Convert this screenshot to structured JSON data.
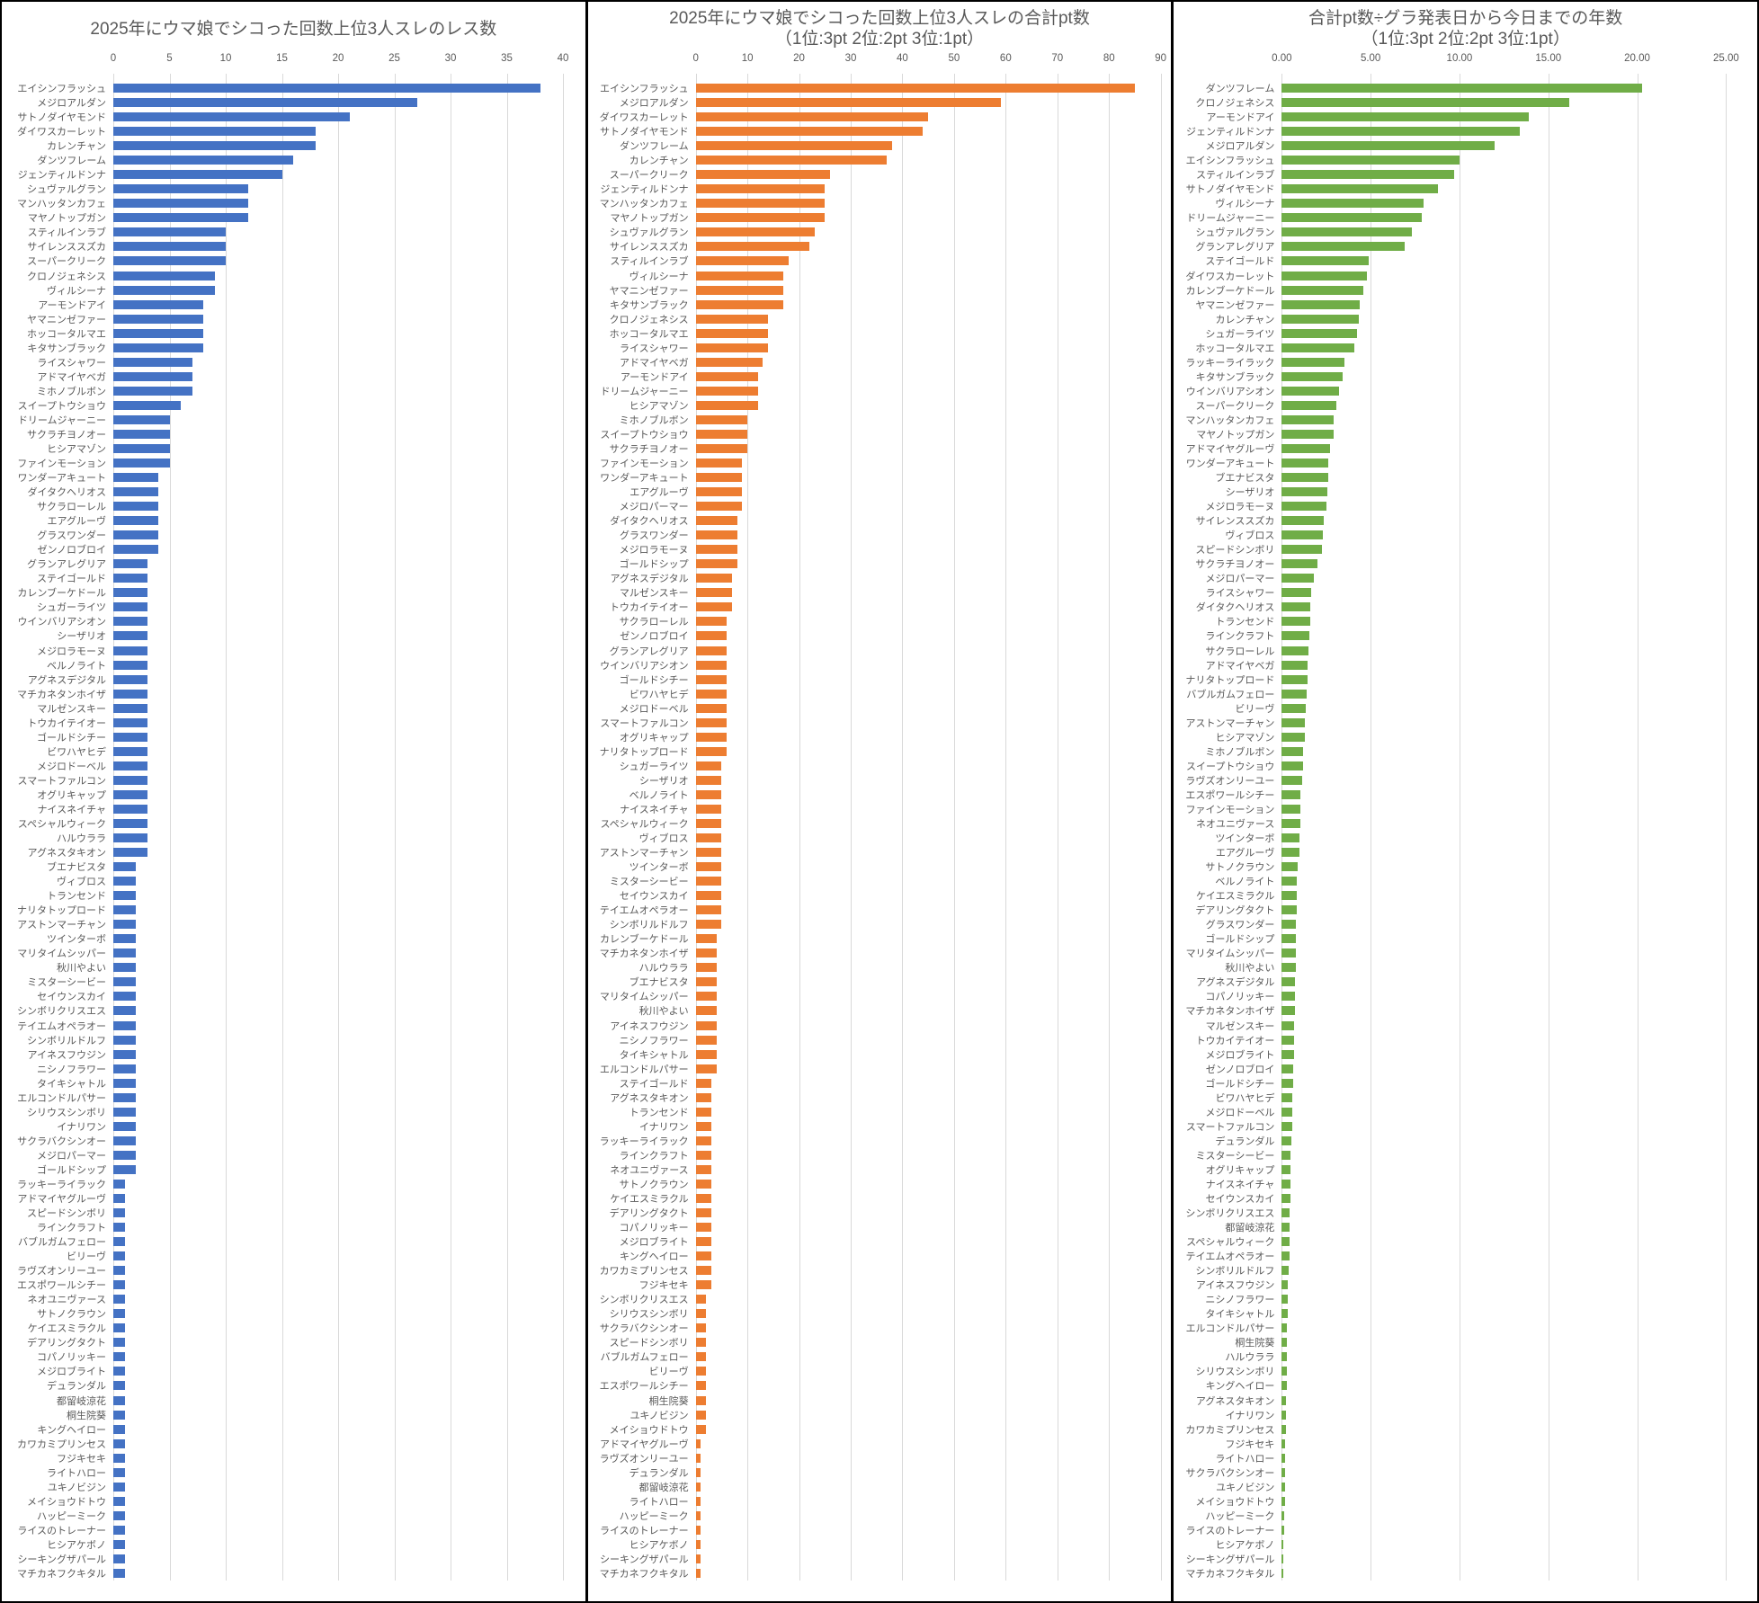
{
  "chart_data": [
    {
      "type": "bar",
      "orientation": "horizontal",
      "title": "2025年にウマ娘でシコった回数上位3人スレのレス数",
      "subtitle": "",
      "color": "#4472c4",
      "xlim": [
        0,
        40
      ],
      "tick_values": [
        0,
        5,
        10,
        15,
        20,
        25,
        30,
        35,
        40
      ],
      "tick_labels": [
        "0",
        "5",
        "10",
        "15",
        "20",
        "25",
        "30",
        "35",
        "40"
      ],
      "grid": true,
      "legend": "none",
      "categories": [
        "エイシンフラッシュ",
        "メジロアルダン",
        "サトノダイヤモンド",
        "ダイワスカーレット",
        "カレンチャン",
        "ダンツフレーム",
        "ジェンティルドンナ",
        "シュヴァルグラン",
        "マンハッタンカフェ",
        "マヤノトップガン",
        "スティルインラブ",
        "サイレンススズカ",
        "スーパークリーク",
        "クロノジェネシス",
        "ヴィルシーナ",
        "アーモンドアイ",
        "ヤマニンゼファー",
        "ホッコータルマエ",
        "キタサンブラック",
        "ライスシャワー",
        "アドマイヤベガ",
        "ミホノブルボン",
        "スイープトウショウ",
        "ドリームジャーニー",
        "サクラチヨノオー",
        "ヒシアマゾン",
        "ファインモーション",
        "ワンダーアキュート",
        "ダイタクヘリオス",
        "サクラローレル",
        "エアグルーヴ",
        "グラスワンダー",
        "ゼンノロブロイ",
        "グランアレグリア",
        "ステイゴールド",
        "カレンブーケドール",
        "シュガーライツ",
        "ウインバリアシオン",
        "シーザリオ",
        "メジロラモーヌ",
        "ベルノライト",
        "アグネスデジタル",
        "マチカネタンホイザ",
        "マルゼンスキー",
        "トウカイテイオー",
        "ゴールドシチー",
        "ビワハヤヒデ",
        "メジロドーベル",
        "スマートファルコン",
        "オグリキャップ",
        "ナイスネイチャ",
        "スペシャルウィーク",
        "ハルウララ",
        "アグネスタキオン",
        "ブエナビスタ",
        "ヴィブロス",
        "トランセンド",
        "ナリタトップロード",
        "アストンマーチャン",
        "ツインターボ",
        "マリタイムシッパー",
        "秋川やよい",
        "ミスターシービー",
        "セイウンスカイ",
        "シンボリクリスエス",
        "テイエムオペラオー",
        "シンボリルドルフ",
        "アイネスフウジン",
        "ニシノフラワー",
        "タイキシャトル",
        "エルコンドルパサー",
        "シリウスシンボリ",
        "イナリワン",
        "サクラバクシンオー",
        "メジロパーマー",
        "ゴールドシップ",
        "ラッキーライラック",
        "アドマイヤグルーヴ",
        "スピードシンボリ",
        "ラインクラフト",
        "バブルガムフェロー",
        "ビリーヴ",
        "ラヴズオンリーユー",
        "エスポワールシチー",
        "ネオユニヴァース",
        "サトノクラウン",
        "ケイエスミラクル",
        "デアリングタクト",
        "コパノリッキー",
        "メジロブライト",
        "デュランダル",
        "都留岐涼花",
        "桐生院葵",
        "キングヘイロー",
        "カワカミプリンセス",
        "フジキセキ",
        "ライトハロー",
        "ユキノビジン",
        "メイショウドトウ",
        "ハッピーミーク",
        "ライスのトレーナー",
        "ヒシアケボノ",
        "シーキングザパール",
        "マチカネフクキタル"
      ],
      "values": [
        38,
        27,
        21,
        18,
        18,
        16,
        15,
        12,
        12,
        12,
        10,
        10,
        10,
        9,
        9,
        8,
        8,
        8,
        8,
        7,
        7,
        7,
        6,
        5,
        5,
        5,
        5,
        4,
        4,
        4,
        4,
        4,
        4,
        3,
        3,
        3,
        3,
        3,
        3,
        3,
        3,
        3,
        3,
        3,
        3,
        3,
        3,
        3,
        3,
        3,
        3,
        3,
        3,
        3,
        2,
        2,
        2,
        2,
        2,
        2,
        2,
        2,
        2,
        2,
        2,
        2,
        2,
        2,
        2,
        2,
        2,
        2,
        2,
        2,
        2,
        2,
        1,
        1,
        1,
        1,
        1,
        1,
        1,
        1,
        1,
        1,
        1,
        1,
        1,
        1,
        1,
        1,
        1,
        1,
        1,
        1,
        1,
        1,
        1,
        1,
        1,
        1,
        1,
        1
      ]
    },
    {
      "type": "bar",
      "orientation": "horizontal",
      "title": "2025年にウマ娘でシコった回数上位3人スレの合計pt数",
      "subtitle": "（1位:3pt 2位:2pt 3位:1pt）",
      "color": "#ed7d31",
      "xlim": [
        0,
        90
      ],
      "tick_values": [
        0,
        10,
        20,
        30,
        40,
        50,
        60,
        70,
        80,
        90
      ],
      "tick_labels": [
        "0",
        "10",
        "20",
        "30",
        "40",
        "50",
        "60",
        "70",
        "80",
        "90"
      ],
      "grid": true,
      "legend": "none",
      "categories": [
        "エイシンフラッシュ",
        "メジロアルダン",
        "ダイワスカーレット",
        "サトノダイヤモンド",
        "ダンツフレーム",
        "カレンチャン",
        "スーパークリーク",
        "ジェンティルドンナ",
        "マンハッタンカフェ",
        "マヤノトップガン",
        "シュヴァルグラン",
        "サイレンススズカ",
        "スティルインラブ",
        "ヴィルシーナ",
        "ヤマニンゼファー",
        "キタサンブラック",
        "クロノジェネシス",
        "ホッコータルマエ",
        "ライスシャワー",
        "アドマイヤベガ",
        "アーモンドアイ",
        "ドリームジャーニー",
        "ヒシアマゾン",
        "ミホノブルボン",
        "スイープトウショウ",
        "サクラチヨノオー",
        "ファインモーション",
        "ワンダーアキュート",
        "エアグルーヴ",
        "メジロパーマー",
        "ダイタクヘリオス",
        "グラスワンダー",
        "メジロラモーヌ",
        "ゴールドシップ",
        "アグネスデジタル",
        "マルゼンスキー",
        "トウカイテイオー",
        "サクラローレル",
        "ゼンノロブロイ",
        "グランアレグリア",
        "ウインバリアシオン",
        "ゴールドシチー",
        "ビワハヤヒデ",
        "メジロドーベル",
        "スマートファルコン",
        "オグリキャップ",
        "ナリタトップロード",
        "シュガーライツ",
        "シーザリオ",
        "ベルノライト",
        "ナイスネイチャ",
        "スペシャルウィーク",
        "ヴィブロス",
        "アストンマーチャン",
        "ツインターボ",
        "ミスターシービー",
        "セイウンスカイ",
        "テイエムオペラオー",
        "シンボリルドルフ",
        "カレンブーケドール",
        "マチカネタンホイザ",
        "ハルウララ",
        "ブエナビスタ",
        "マリタイムシッパー",
        "秋川やよい",
        "アイネスフウジン",
        "ニシノフラワー",
        "タイキシャトル",
        "エルコンドルパサー",
        "ステイゴールド",
        "アグネスタキオン",
        "トランセンド",
        "イナリワン",
        "ラッキーライラック",
        "ラインクラフト",
        "ネオユニヴァース",
        "サトノクラウン",
        "ケイエスミラクル",
        "デアリングタクト",
        "コパノリッキー",
        "メジロブライト",
        "キングヘイロー",
        "カワカミプリンセス",
        "フジキセキ",
        "シンボリクリスエス",
        "シリウスシンボリ",
        "サクラバクシンオー",
        "スピードシンボリ",
        "バブルガムフェロー",
        "ビリーヴ",
        "エスポワールシチー",
        "桐生院葵",
        "ユキノビジン",
        "メイショウドトウ",
        "アドマイヤグルーヴ",
        "ラヴズオンリーユー",
        "デュランダル",
        "都留岐涼花",
        "ライトハロー",
        "ハッピーミーク",
        "ライスのトレーナー",
        "ヒシアケボノ",
        "シーキングザパール",
        "マチカネフクキタル"
      ],
      "values": [
        85,
        59,
        45,
        44,
        38,
        37,
        26,
        25,
        25,
        25,
        23,
        22,
        18,
        17,
        17,
        17,
        14,
        14,
        14,
        13,
        12,
        12,
        12,
        10,
        10,
        10,
        9,
        9,
        9,
        9,
        8,
        8,
        8,
        8,
        7,
        7,
        7,
        6,
        6,
        6,
        6,
        6,
        6,
        6,
        6,
        6,
        6,
        5,
        5,
        5,
        5,
        5,
        5,
        5,
        5,
        5,
        5,
        5,
        5,
        4,
        4,
        4,
        4,
        4,
        4,
        4,
        4,
        4,
        4,
        3,
        3,
        3,
        3,
        3,
        3,
        3,
        3,
        3,
        3,
        3,
        3,
        3,
        3,
        3,
        2,
        2,
        2,
        2,
        2,
        2,
        2,
        2,
        2,
        2,
        1,
        1,
        1,
        1,
        1,
        1,
        1,
        1,
        1,
        1
      ]
    },
    {
      "type": "bar",
      "orientation": "horizontal",
      "title": "合計pt数÷グラ発表日から今日までの年数",
      "subtitle": "（1位:3pt 2位:2pt 3位:1pt）",
      "color": "#70ad47",
      "xlim": [
        0,
        25
      ],
      "tick_values": [
        0,
        5,
        10,
        15,
        20,
        25
      ],
      "tick_labels": [
        "0.00",
        "5.00",
        "10.00",
        "15.00",
        "20.00",
        "25.00"
      ],
      "grid": true,
      "legend": "none",
      "categories": [
        "ダンツフレーム",
        "クロノジェネシス",
        "アーモンドアイ",
        "ジェンティルドンナ",
        "メジロアルダン",
        "エイシンフラッシュ",
        "スティルインラブ",
        "サトノダイヤモンド",
        "ヴィルシーナ",
        "ドリームジャーニー",
        "シュヴァルグラン",
        "グランアレグリア",
        "ステイゴールド",
        "ダイワスカーレット",
        "カレンブーケドール",
        "ヤマニンゼファー",
        "カレンチャン",
        "シュガーライツ",
        "ホッコータルマエ",
        "ラッキーライラック",
        "キタサンブラック",
        "ウインバリアシオン",
        "スーパークリーク",
        "マンハッタンカフェ",
        "マヤノトップガン",
        "アドマイヤグルーヴ",
        "ワンダーアキュート",
        "ブエナビスタ",
        "シーザリオ",
        "メジロラモーヌ",
        "サイレンススズカ",
        "ヴィブロス",
        "スピードシンボリ",
        "サクラチヨノオー",
        "メジロパーマー",
        "ライスシャワー",
        "ダイタクヘリオス",
        "トランセンド",
        "ラインクラフト",
        "サクラローレル",
        "アドマイヤベガ",
        "ナリタトップロード",
        "バブルガムフェロー",
        "ビリーヴ",
        "アストンマーチャン",
        "ヒシアマゾン",
        "ミホノブルボン",
        "スイープトウショウ",
        "ラヴズオンリーユー",
        "エスポワールシチー",
        "ファインモーション",
        "ネオユニヴァース",
        "ツインターボ",
        "エアグルーヴ",
        "サトノクラウン",
        "ベルノライト",
        "ケイエスミラクル",
        "デアリングタクト",
        "グラスワンダー",
        "ゴールドシップ",
        "マリタイムシッパー",
        "秋川やよい",
        "アグネスデジタル",
        "コパノリッキー",
        "マチカネタンホイザ",
        "マルゼンスキー",
        "トウカイテイオー",
        "メジロブライト",
        "ゼンノロブロイ",
        "ゴールドシチー",
        "ビワハヤヒデ",
        "メジロドーベル",
        "スマートファルコン",
        "デュランダル",
        "ミスターシービー",
        "オグリキャップ",
        "ナイスネイチャ",
        "セイウンスカイ",
        "シンボリクリスエス",
        "都留岐涼花",
        "スペシャルウィーク",
        "テイエムオペラオー",
        "シンボリルドルフ",
        "アイネスフウジン",
        "ニシノフラワー",
        "タイキシャトル",
        "エルコンドルパサー",
        "桐生院葵",
        "ハルウララ",
        "シリウスシンボリ",
        "キングヘイロー",
        "アグネスタキオン",
        "イナリワン",
        "カワカミプリンセス",
        "フジキセキ",
        "ライトハロー",
        "サクラバクシンオー",
        "ユキノビジン",
        "メイショウドトウ",
        "ハッピーミーク",
        "ライスのトレーナー",
        "ヒシアケボノ",
        "シーキングザパール",
        "マチカネフクキタル"
      ],
      "values": [
        20.3,
        16.2,
        13.9,
        13.4,
        12.0,
        10.0,
        9.7,
        8.8,
        8.0,
        7.9,
        7.3,
        6.9,
        4.9,
        4.8,
        4.6,
        4.4,
        4.35,
        4.25,
        4.1,
        3.5,
        3.4,
        3.2,
        3.05,
        2.9,
        2.9,
        2.7,
        2.6,
        2.6,
        2.55,
        2.5,
        2.35,
        2.3,
        2.25,
        2.0,
        1.8,
        1.65,
        1.6,
        1.6,
        1.55,
        1.5,
        1.45,
        1.45,
        1.4,
        1.35,
        1.3,
        1.3,
        1.2,
        1.2,
        1.15,
        1.05,
        1.05,
        1.05,
        1.0,
        1.0,
        0.9,
        0.85,
        0.85,
        0.85,
        0.8,
        0.8,
        0.8,
        0.78,
        0.75,
        0.75,
        0.72,
        0.7,
        0.7,
        0.67,
        0.65,
        0.62,
        0.6,
        0.6,
        0.6,
        0.52,
        0.5,
        0.5,
        0.5,
        0.47,
        0.46,
        0.45,
        0.43,
        0.42,
        0.4,
        0.35,
        0.34,
        0.32,
        0.31,
        0.3,
        0.3,
        0.29,
        0.27,
        0.25,
        0.24,
        0.23,
        0.21,
        0.2,
        0.17,
        0.17,
        0.17,
        0.15,
        0.13,
        0.1,
        0.1,
        0.09
      ]
    }
  ]
}
